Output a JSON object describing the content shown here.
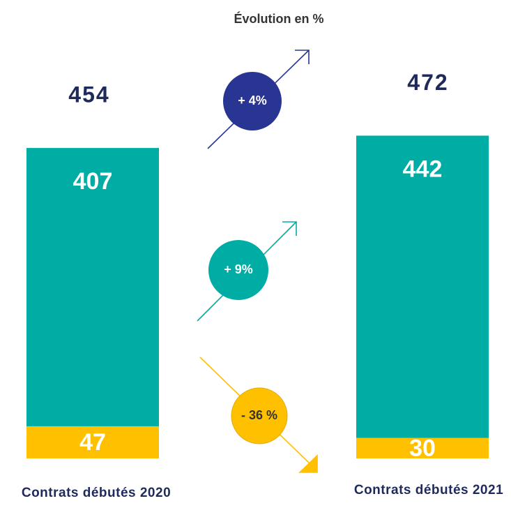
{
  "chart_data": {
    "type": "stacked_bar",
    "categories": [
      "Contrats débutés 2020",
      "Contrats débutés 2021"
    ],
    "series": [
      {
        "name": null,
        "color": "#FFC000",
        "values": [
          47,
          30
        ]
      },
      {
        "name": null,
        "color": "#00ADA5",
        "values": [
          407,
          442
        ]
      }
    ],
    "totals": [
      454,
      472
    ],
    "evolution": {
      "title": "Évolution en %",
      "values": [
        4,
        9,
        -36
      ],
      "value_labels": [
        "+ 4%",
        "+ 9%",
        "- 36 %"
      ],
      "colors": [
        "#283593",
        "#00ADA5",
        "#FFC000"
      ]
    }
  }
}
